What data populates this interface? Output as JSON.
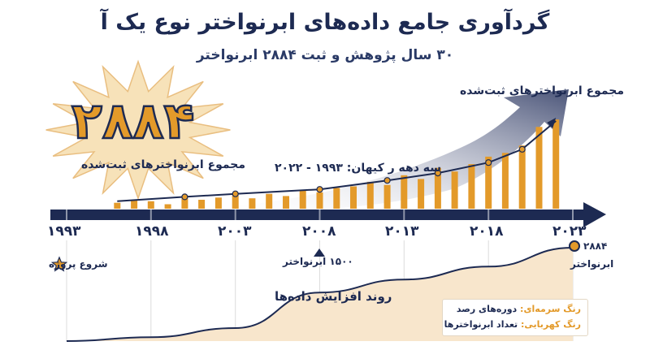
{
  "title": "گردآوری جامع داده‌های ابرنواختر نوع یک آ",
  "subtitle": "۳۰ سال پژوهش و ثبت ۲۸۸۴ ابرنواختر",
  "highlight": {
    "big_number": "۲۸۸۴",
    "caption": "مجموع ابرنواخترهای ثبت‌شده"
  },
  "top_chart": {
    "series_caption": "مجموع ابرنواخترهای ثبت‌شده",
    "era_caption": "سه دهه ر کیهان: ۱۹۹۳ - ۲۰۲۲"
  },
  "timeline": {
    "ticks": [
      "۱۹۹۳",
      "۱۹۹۸",
      "۲۰۰۳",
      "۲۰۰۸",
      "۲۰۱۳",
      "۲۰۱۸",
      "۲۰۲۳"
    ]
  },
  "bottom_chart": {
    "start_label": "شروع پروژه",
    "mid_label": "۱۵۰۰ ابرنواختر",
    "end_number": "۲۸۸۴",
    "end_word": "ابرنواختر",
    "area_caption": "روند افزایش داده‌ها"
  },
  "legend": {
    "navy_key": "رنگ سرمه‌ای:",
    "navy_text": "دوره‌های رصد",
    "amber_key": "رنگ کهربایی:",
    "amber_text": "تعداد ابرنواخترها"
  },
  "colors": {
    "navy": "#1d2a52",
    "amber": "#e39a2a",
    "area_fill": "#f8e6cc",
    "arrow_grey": "#8c93a8"
  },
  "chart_data": [
    {
      "type": "bar",
      "x": [
        1996,
        1997,
        1998,
        1999,
        2000,
        2001,
        2002,
        2003,
        2004,
        2005,
        2006,
        2007,
        2008,
        2009,
        2010,
        2011,
        2012,
        2013,
        2014,
        2015,
        2016,
        2017,
        2018,
        2019,
        2020,
        2021,
        2022
      ],
      "values": [
        8,
        12,
        10,
        6,
        14,
        12,
        15,
        18,
        14,
        20,
        17,
        25,
        22,
        28,
        30,
        36,
        32,
        45,
        40,
        55,
        50,
        60,
        70,
        75,
        85,
        110,
        120
      ],
      "line": {
        "x": [
          1996,
          2000,
          2003,
          2008,
          2012,
          2015,
          2018,
          2020,
          2022
        ],
        "y": [
          10,
          16,
          20,
          26,
          38,
          48,
          62,
          80,
          118
        ]
      },
      "ylim": [
        0,
        130
      ],
      "xlim": [
        1993,
        2023
      ]
    },
    {
      "type": "area",
      "x": [
        1993,
        1998,
        2003,
        2008,
        2013,
        2018,
        2023
      ],
      "y": [
        0,
        120,
        400,
        1500,
        1900,
        2300,
        2884
      ],
      "ylim": [
        0,
        2884
      ],
      "xlim": [
        1993,
        2023
      ]
    }
  ]
}
